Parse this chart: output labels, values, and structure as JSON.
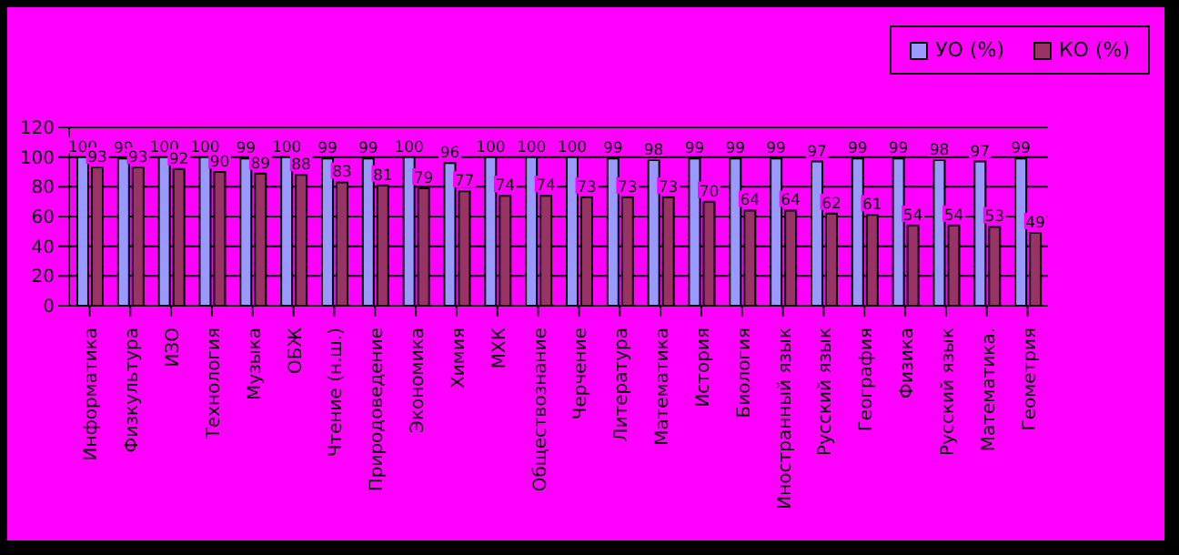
{
  "chart_data": {
    "type": "bar",
    "categories": [
      "Информатика",
      "Физкультура",
      "ИЗО",
      "Технология",
      "Музыка",
      "ОБЖ",
      "Чтение (н.ш.)",
      "Природоведение",
      "Экономика",
      "Химия",
      "МХК",
      "Обществознание",
      "Черчение",
      "Литература",
      "Математика",
      "История",
      "Биология",
      "Иностранный язык",
      "Русский язык",
      "География",
      "Физика",
      "Русский язык",
      "Математика.",
      "Геометрия"
    ],
    "series": [
      {
        "name": "УО (%)",
        "color": "#9999ff",
        "values": [
          100,
          99,
          100,
          100,
          99,
          100,
          99,
          99,
          100,
          96,
          100,
          100,
          100,
          99,
          98,
          99,
          99,
          99,
          97,
          99,
          99,
          98,
          97,
          99
        ]
      },
      {
        "name": "КО (%)",
        "color": "#993366",
        "values": [
          93,
          93,
          92,
          90,
          89,
          88,
          83,
          81,
          79,
          77,
          74,
          74,
          73,
          73,
          73,
          70,
          64,
          64,
          62,
          61,
          54,
          54,
          53,
          49
        ]
      }
    ],
    "ylim": [
      0,
      120
    ],
    "yticks": [
      0,
      20,
      40,
      60,
      80,
      100,
      120
    ],
    "grid": "y",
    "legend": "top right",
    "data_labels": true
  }
}
